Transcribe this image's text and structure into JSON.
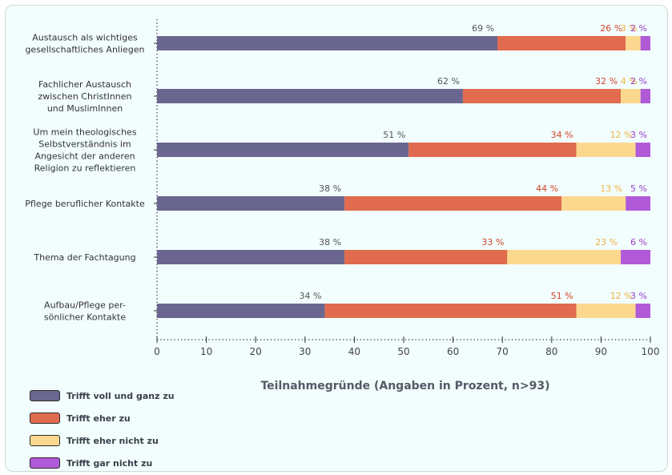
{
  "chart_data": {
    "type": "bar",
    "orientation": "horizontal",
    "stacked": true,
    "categories": [
      [
        "Austausch als wichtiges",
        "gesellschaftliches Anliegen"
      ],
      [
        "Fachlicher Austausch",
        "zwischen ChristInnen",
        "und MuslimInnen"
      ],
      [
        "Um mein theologisches",
        "Selbstverständnis im",
        "Angesicht der anderen",
        "Religion zu reflektieren"
      ],
      [
        "Pflege beruflicher Kontakte"
      ],
      [
        "Thema der Fachtagung"
      ],
      [
        "Aufbau/Pflege per-",
        "sönlicher Kontakte"
      ]
    ],
    "series": [
      {
        "name": "Trifft voll und ganz zu",
        "color": "#6b668f",
        "label_color": "#555555",
        "values": [
          69,
          62,
          51,
          38,
          38,
          34
        ]
      },
      {
        "name": "Trifft eher zu",
        "color": "#e06b4e",
        "label_color": "#d2452b",
        "values": [
          26,
          32,
          34,
          44,
          33,
          51
        ]
      },
      {
        "name": "Trifft eher nicht zu",
        "color": "#fcd88f",
        "label_color": "#f0b445",
        "values": [
          3,
          4,
          12,
          13,
          23,
          12
        ]
      },
      {
        "name": "Trifft gar nicht zu",
        "color": "#b05ad8",
        "label_color": "#9a3fc8",
        "values": [
          2,
          2,
          3,
          5,
          6,
          3
        ]
      }
    ],
    "value_suffix": " %",
    "xticks": [
      0,
      10,
      20,
      30,
      40,
      50,
      60,
      70,
      80,
      90,
      100
    ],
    "xlim": [
      0,
      100
    ],
    "xlabel": "Teilnahmegründe (Angaben in Prozent, n>93)",
    "legend_position": "bottom-left",
    "grid": false
  }
}
